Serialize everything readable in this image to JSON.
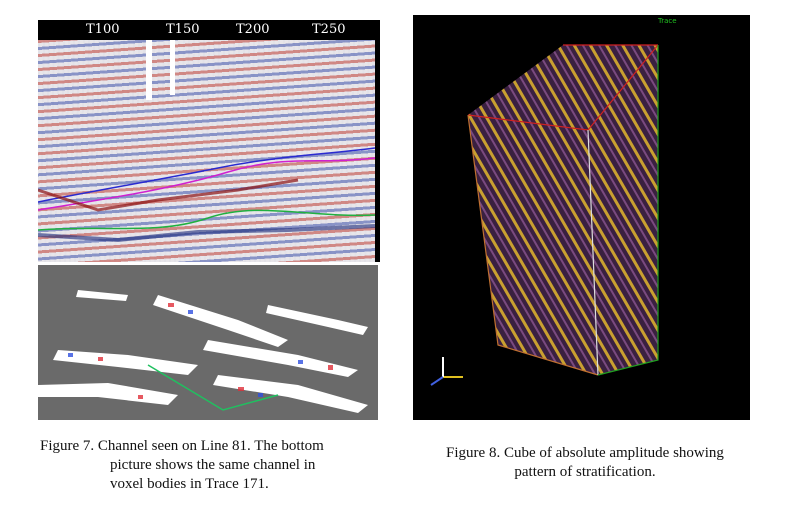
{
  "figure7": {
    "axis_labels": [
      "T100",
      "T150",
      "T200",
      "T250"
    ],
    "caption": {
      "lines": [
        "Figure 7.  Channel seen on Line 81. The bottom",
        "picture shows the same channel in",
        "voxel bodies in Trace 171."
      ]
    }
  },
  "figure8": {
    "axis_label": "Trace",
    "caption": {
      "lines": [
        "Figure 8. Cube of absolute amplitude showing",
        "pattern of stratification."
      ]
    }
  }
}
